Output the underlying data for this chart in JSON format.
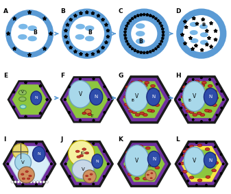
{
  "bg_color": "#ffffff",
  "blue_fill": "#5b9bd5",
  "ellipse_blue": "#5b9bd5",
  "ellipse_light": "#7ab8e8",
  "star_color": "#000000",
  "arrow_blue": "#5b9bd5",
  "green_cell": "#8dc63f",
  "purple_border": "#7030a0",
  "dark_border": "#1a1a1a",
  "vacuole_light": "#aed6f1",
  "vacuole_cyan": "#a8d8ea",
  "nucleus_blue": "#2e4dab",
  "red_body": "#c0392b",
  "yellow_body": "#f5e642",
  "brown_body": "#c8873a",
  "labels": [
    "A",
    "B",
    "C",
    "D",
    "E",
    "F",
    "G",
    "H",
    "I",
    "J",
    "K",
    "L"
  ]
}
